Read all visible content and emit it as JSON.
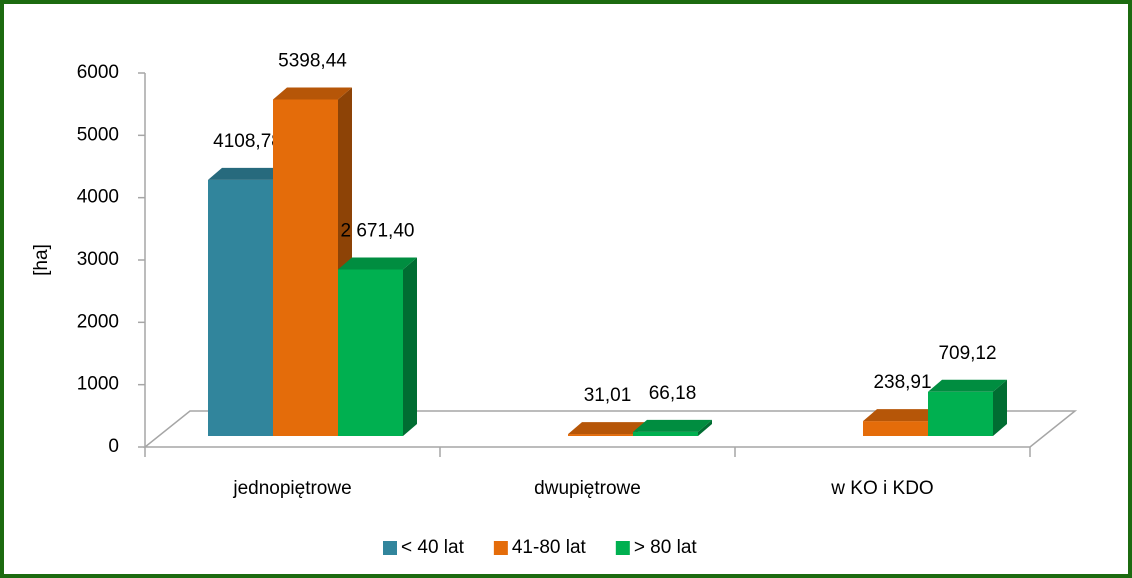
{
  "chart_data": {
    "type": "bar3d",
    "categories": [
      "jednopiętrowe",
      "dwupiętrowe",
      "w KO i KDO"
    ],
    "series": [
      {
        "name": "< 40 lat",
        "color": "#31859c",
        "values": [
          4108.78,
          null,
          null
        ],
        "value_labels": [
          "4108,78",
          null,
          null
        ]
      },
      {
        "name": "41-80 lat",
        "color": "#e46c0a",
        "values": [
          5398.44,
          31.01,
          238.91
        ],
        "value_labels": [
          "5398,44",
          "31,01",
          "238,91"
        ]
      },
      {
        "name": "> 80 lat",
        "color": "#00b050",
        "values": [
          2671.4,
          66.18,
          709.12
        ],
        "value_labels": [
          "2 671,40",
          "66,18",
          "709,12"
        ]
      }
    ],
    "ylabel": "[ha]",
    "ylim": [
      0,
      6000
    ],
    "yticks": [
      0,
      1000,
      2000,
      3000,
      4000,
      5000,
      6000
    ],
    "legend": "bottom"
  }
}
